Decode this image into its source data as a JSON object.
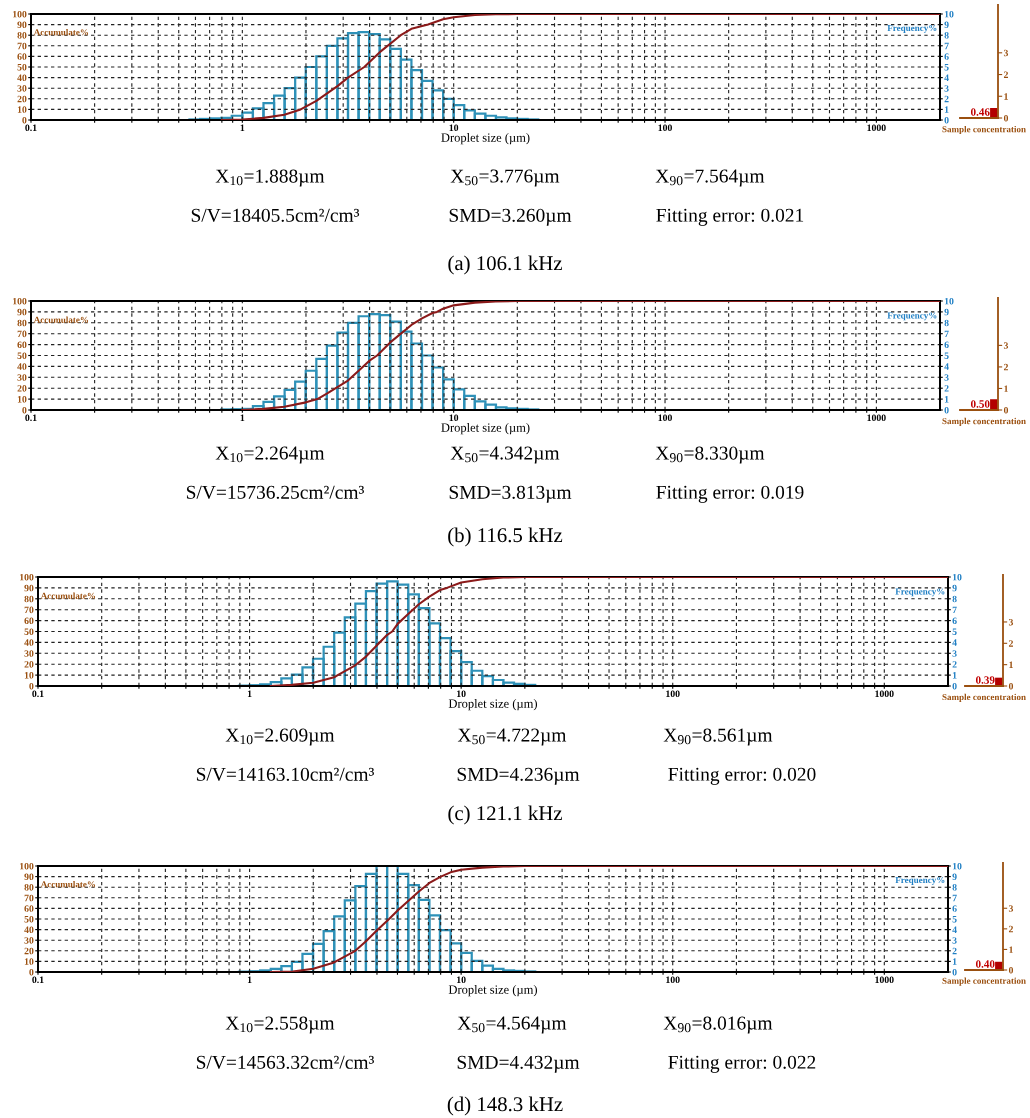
{
  "chart_data": [
    {
      "type": "histogram",
      "title": "(a) 106.1 kHz",
      "xlabel": "Droplet size (µm)",
      "ylabel": "Accumulate%",
      "y2label": "Frequency%",
      "log": "x",
      "xlim": [
        0.1,
        2000
      ],
      "xticks": [
        0.1,
        {
          "value": 0.2,
          "label": null
        },
        {
          "value": 0.3,
          "label": null
        },
        {
          "value": 0.4,
          "label": null
        },
        {
          "value": 0.5,
          "label": null
        },
        {
          "value": 0.6,
          "label": null
        },
        {
          "value": 0.7,
          "label": null
        },
        {
          "value": 0.8,
          "label": null
        },
        {
          "value": 0.9,
          "label": null
        },
        1,
        {
          "value": 2,
          "label": null
        },
        {
          "value": 3,
          "label": null
        },
        {
          "value": 4,
          "label": null
        },
        {
          "value": 5,
          "label": null
        },
        {
          "value": 6,
          "label": null
        },
        {
          "value": 7,
          "label": null
        },
        {
          "value": 8,
          "label": null
        },
        {
          "value": 9,
          "label": null
        },
        10,
        {
          "value": 20,
          "label": null
        },
        {
          "value": 30,
          "label": null
        },
        {
          "value": 40,
          "label": null
        },
        {
          "value": 50,
          "label": null
        },
        {
          "value": 60,
          "label": null
        },
        {
          "value": 70,
          "label": null
        },
        {
          "value": 80,
          "label": null
        },
        {
          "value": 90,
          "label": null
        },
        100,
        {
          "value": 200,
          "label": null
        },
        {
          "value": 300,
          "label": null
        },
        {
          "value": 400,
          "label": null
        },
        {
          "value": 500,
          "label": null
        },
        {
          "value": 600,
          "label": null
        },
        {
          "value": 700,
          "label": null
        },
        {
          "value": 800,
          "label": null
        },
        {
          "value": 900,
          "label": null
        },
        1000
      ],
      "ylim": [
        0,
        100
      ],
      "yticks": [
        0,
        10,
        20,
        30,
        40,
        50,
        60,
        70,
        80,
        90,
        100
      ],
      "y2lim": [
        0,
        10
      ],
      "y2ticks": [
        0,
        1,
        2,
        3,
        4,
        5,
        6,
        7,
        8,
        9,
        10
      ],
      "grid": true,
      "series": [
        {
          "type": "histogram",
          "axis": "y2",
          "color": "#2e91b8",
          "bins": [
            0.501,
            0.562,
            0.631,
            0.708,
            0.794,
            0.891,
            1,
            1.122,
            1.259,
            1.413,
            1.585,
            1.778,
            1.995,
            2.239,
            2.512,
            2.818,
            3.162,
            3.548,
            3.981,
            4.467,
            5.012,
            5.623,
            6.31,
            7.079,
            7.943,
            8.913,
            10,
            11.22,
            12.59,
            14.13,
            15.85,
            17.78,
            19.95,
            22.39,
            25.12
          ],
          "values": [
            null,
            0.05,
            0.1,
            0.15,
            0.2,
            0.4,
            0.7,
            1.1,
            1.6,
            2.3,
            3.0,
            4.0,
            5.0,
            6.0,
            7.0,
            7.7,
            8.2,
            8.3,
            8.1,
            7.6,
            6.7,
            5.7,
            4.7,
            3.7,
            2.8,
            2.0,
            1.4,
            0.9,
            0.6,
            0.4,
            0.25,
            0.15,
            0.1,
            0.05
          ]
        },
        {
          "type": "line",
          "color": "#8b1a1a",
          "x": [
            0.8,
            1.0,
            1.26,
            1.58,
            1.888,
            2.24,
            2.82,
            3.16,
            3.776,
            4.47,
            5.62,
            6.31,
            7.564,
            8.91,
            10,
            12.6,
            15.8,
            20,
            2000
          ],
          "values": [
            0,
            0.5,
            2,
            5,
            10,
            18,
            32,
            40,
            50,
            64,
            80,
            86,
            90,
            95,
            97,
            99,
            99.7,
            100,
            100
          ]
        }
      ],
      "annotations": [
        "X$_{10}$=1.888µm",
        "X$_{50}$=3.776µm",
        "X$_{90}$=7.564µm",
        "S/V=18405.5cm²/cm³",
        "SMD=3.260µm",
        "Fitting error: 0.021"
      ]
    },
    {
      "type": "bar",
      "categories": [
        null
      ],
      "values": [
        0.46
      ],
      "colors": [
        "#b30000"
      ],
      "value_labels": [
        "0.46"
      ],
      "data_labels": true,
      "ylim": [
        0,
        5.2
      ],
      "yticks": [
        0,
        1,
        2,
        3
      ],
      "xlabel": "Sample concentration"
    },
    {
      "type": "histogram",
      "title": "(b) 116.5 kHz",
      "xlabel": "Droplet size (µm)",
      "ylabel": "Accumulate%",
      "y2label": "Frequency%",
      "log": "x",
      "xlim": [
        0.1,
        2000
      ],
      "xticks": [
        0.1,
        {
          "value": 0.2,
          "label": null
        },
        {
          "value": 0.3,
          "label": null
        },
        {
          "value": 0.4,
          "label": null
        },
        {
          "value": 0.5,
          "label": null
        },
        {
          "value": 0.6,
          "label": null
        },
        {
          "value": 0.7,
          "label": null
        },
        {
          "value": 0.8,
          "label": null
        },
        {
          "value": 0.9,
          "label": null
        },
        1,
        {
          "value": 2,
          "label": null
        },
        {
          "value": 3,
          "label": null
        },
        {
          "value": 4,
          "label": null
        },
        {
          "value": 5,
          "label": null
        },
        {
          "value": 6,
          "label": null
        },
        {
          "value": 7,
          "label": null
        },
        {
          "value": 8,
          "label": null
        },
        {
          "value": 9,
          "label": null
        },
        10,
        {
          "value": 20,
          "label": null
        },
        {
          "value": 30,
          "label": null
        },
        {
          "value": 40,
          "label": null
        },
        {
          "value": 50,
          "label": null
        },
        {
          "value": 60,
          "label": null
        },
        {
          "value": 70,
          "label": null
        },
        {
          "value": 80,
          "label": null
        },
        {
          "value": 90,
          "label": null
        },
        100,
        {
          "value": 200,
          "label": null
        },
        {
          "value": 300,
          "label": null
        },
        {
          "value": 400,
          "label": null
        },
        {
          "value": 500,
          "label": null
        },
        {
          "value": 600,
          "label": null
        },
        {
          "value": 700,
          "label": null
        },
        {
          "value": 800,
          "label": null
        },
        {
          "value": 900,
          "label": null
        },
        1000
      ],
      "ylim": [
        0,
        100
      ],
      "yticks": [
        0,
        10,
        20,
        30,
        40,
        50,
        60,
        70,
        80,
        90,
        100
      ],
      "y2lim": [
        0,
        10
      ],
      "y2ticks": [
        0,
        1,
        2,
        3,
        4,
        5,
        6,
        7,
        8,
        9,
        10
      ],
      "grid": true,
      "series": [
        {
          "type": "histogram",
          "axis": "y2",
          "color": "#2e91b8",
          "bins": [
            0.631,
            0.708,
            0.794,
            0.891,
            1,
            1.122,
            1.259,
            1.413,
            1.585,
            1.778,
            1.995,
            2.239,
            2.512,
            2.818,
            3.162,
            3.548,
            3.981,
            4.467,
            5.012,
            5.623,
            6.31,
            7.079,
            7.943,
            8.913,
            10,
            11.22,
            12.59,
            14.13,
            15.85,
            17.78,
            19.95,
            22.39,
            25.12
          ],
          "values": [
            null,
            null,
            0.05,
            0.07,
            0.1,
            0.35,
            0.75,
            1.25,
            1.85,
            2.6,
            3.6,
            4.7,
            5.9,
            7.1,
            8.0,
            8.6,
            8.8,
            8.7,
            8.1,
            7.2,
            6.1,
            5.0,
            3.9,
            2.8,
            1.9,
            1.3,
            0.8,
            0.5,
            0.25,
            0.15,
            0.1,
            0.05
          ]
        },
        {
          "type": "line",
          "color": "#8b1a1a",
          "x": [
            1.0,
            1.26,
            1.58,
            2.0,
            2.264,
            2.51,
            3.16,
            3.55,
            3.98,
            4.342,
            5.01,
            6.31,
            7.08,
            7.94,
            8.33,
            8.91,
            10,
            12.6,
            15.8,
            20,
            2000
          ],
          "values": [
            0,
            1,
            3,
            7,
            10,
            15,
            27,
            36,
            45,
            50,
            62,
            78,
            84,
            89,
            90,
            93,
            96,
            98.5,
            99.5,
            100,
            100
          ]
        }
      ],
      "annotations": [
        "X$_{10}$=2.264µm",
        "X$_{50}$=4.342µm",
        "X$_{90}$=8.330µm",
        "S/V=15736.25cm²/cm³",
        "SMD=3.813µm",
        "Fitting error: 0.019"
      ]
    },
    {
      "type": "bar",
      "categories": [
        null
      ],
      "values": [
        0.5
      ],
      "colors": [
        "#b30000"
      ],
      "value_labels": [
        "0.50"
      ],
      "data_labels": true,
      "ylim": [
        0,
        5.2
      ],
      "yticks": [
        0,
        1,
        2,
        3
      ],
      "xlabel": "Sample concentration"
    },
    {
      "type": "histogram",
      "title": "(c) 121.1 kHz",
      "xlabel": "Droplet size (µm)",
      "ylabel": "Accumulate%",
      "y2label": "Frequency%",
      "log": "x",
      "xlim": [
        0.1,
        2000
      ],
      "xticks": [
        0.1,
        {
          "value": 0.2,
          "label": null
        },
        {
          "value": 0.3,
          "label": null
        },
        {
          "value": 0.4,
          "label": null
        },
        {
          "value": 0.5,
          "label": null
        },
        {
          "value": 0.6,
          "label": null
        },
        {
          "value": 0.7,
          "label": null
        },
        {
          "value": 0.8,
          "label": null
        },
        {
          "value": 0.9,
          "label": null
        },
        1,
        {
          "value": 2,
          "label": null
        },
        {
          "value": 3,
          "label": null
        },
        {
          "value": 4,
          "label": null
        },
        {
          "value": 5,
          "label": null
        },
        {
          "value": 6,
          "label": null
        },
        {
          "value": 7,
          "label": null
        },
        {
          "value": 8,
          "label": null
        },
        {
          "value": 9,
          "label": null
        },
        10,
        {
          "value": 20,
          "label": null
        },
        {
          "value": 30,
          "label": null
        },
        {
          "value": 40,
          "label": null
        },
        {
          "value": 50,
          "label": null
        },
        {
          "value": 60,
          "label": null
        },
        {
          "value": 70,
          "label": null
        },
        {
          "value": 80,
          "label": null
        },
        {
          "value": 90,
          "label": null
        },
        100,
        {
          "value": 200,
          "label": null
        },
        {
          "value": 300,
          "label": null
        },
        {
          "value": 400,
          "label": null
        },
        {
          "value": 500,
          "label": null
        },
        {
          "value": 600,
          "label": null
        },
        {
          "value": 700,
          "label": null
        },
        {
          "value": 800,
          "label": null
        },
        {
          "value": 900,
          "label": null
        },
        1000
      ],
      "ylim": [
        0,
        100
      ],
      "yticks": [
        0,
        10,
        20,
        30,
        40,
        50,
        60,
        70,
        80,
        90,
        100
      ],
      "y2lim": [
        0,
        10
      ],
      "y2ticks": [
        0,
        1,
        2,
        3,
        4,
        5,
        6,
        7,
        8,
        9,
        10
      ],
      "grid": true,
      "series": [
        {
          "type": "histogram",
          "axis": "y2",
          "color": "#2e91b8",
          "bins": [
            0.794,
            0.891,
            1,
            1.122,
            1.259,
            1.413,
            1.585,
            1.778,
            1.995,
            2.239,
            2.512,
            2.818,
            3.162,
            3.548,
            3.981,
            4.467,
            5.012,
            5.623,
            6.31,
            7.079,
            7.943,
            8.913,
            10,
            11.22,
            12.59,
            14.13,
            15.85,
            17.78,
            19.95,
            22.39
          ],
          "values": [
            null,
            0.03,
            0.07,
            0.15,
            0.35,
            0.7,
            1.05,
            1.7,
            2.5,
            3.6,
            4.9,
            6.3,
            7.55,
            8.7,
            9.4,
            9.6,
            9.3,
            8.4,
            7.15,
            5.75,
            4.4,
            3.2,
            2.2,
            1.4,
            0.9,
            0.55,
            0.3,
            0.2,
            0.1
          ]
        },
        {
          "type": "line",
          "color": "#8b1a1a",
          "x": [
            1.26,
            1.58,
            2.0,
            2.51,
            2.609,
            3.16,
            3.55,
            3.98,
            4.47,
            4.722,
            5.01,
            5.62,
            6.31,
            7.08,
            7.94,
            8.561,
            10,
            12.6,
            15.8,
            20,
            2000
          ],
          "values": [
            0,
            1,
            3,
            8,
            10,
            19,
            27,
            37,
            47,
            50,
            57,
            66,
            75,
            82,
            88,
            90,
            95,
            98,
            99.5,
            100,
            100
          ]
        }
      ],
      "annotations": [
        "X$_{10}$=2.609µm",
        "X$_{50}$=4.722µm",
        "X$_{90}$=8.561µm",
        "S/V=14163.10cm²/cm³",
        "SMD=4.236µm",
        "Fitting error: 0.020"
      ]
    },
    {
      "type": "bar",
      "categories": [
        null
      ],
      "values": [
        0.39
      ],
      "colors": [
        "#b30000"
      ],
      "value_labels": [
        "0.39"
      ],
      "data_labels": true,
      "ylim": [
        0,
        5.2
      ],
      "yticks": [
        0,
        1,
        2,
        3
      ],
      "xlabel": "Sample concentration"
    },
    {
      "type": "histogram",
      "title": "(d) 148.3 kHz",
      "xlabel": "Droplet size (µm)",
      "ylabel": "Accumulate%",
      "y2label": "Frequency%",
      "log": "x",
      "xlim": [
        0.1,
        2000
      ],
      "xticks": [
        0.1,
        {
          "value": 0.2,
          "label": null
        },
        {
          "value": 0.3,
          "label": null
        },
        {
          "value": 0.4,
          "label": null
        },
        {
          "value": 0.5,
          "label": null
        },
        {
          "value": 0.6,
          "label": null
        },
        {
          "value": 0.7,
          "label": null
        },
        {
          "value": 0.8,
          "label": null
        },
        {
          "value": 0.9,
          "label": null
        },
        1,
        {
          "value": 2,
          "label": null
        },
        {
          "value": 3,
          "label": null
        },
        {
          "value": 4,
          "label": null
        },
        {
          "value": 5,
          "label": null
        },
        {
          "value": 6,
          "label": null
        },
        {
          "value": 7,
          "label": null
        },
        {
          "value": 8,
          "label": null
        },
        {
          "value": 9,
          "label": null
        },
        10,
        {
          "value": 20,
          "label": null
        },
        {
          "value": 30,
          "label": null
        },
        {
          "value": 40,
          "label": null
        },
        {
          "value": 50,
          "label": null
        },
        {
          "value": 60,
          "label": null
        },
        {
          "value": 70,
          "label": null
        },
        {
          "value": 80,
          "label": null
        },
        {
          "value": 90,
          "label": null
        },
        100,
        {
          "value": 200,
          "label": null
        },
        {
          "value": 300,
          "label": null
        },
        {
          "value": 400,
          "label": null
        },
        {
          "value": 500,
          "label": null
        },
        {
          "value": 600,
          "label": null
        },
        {
          "value": 700,
          "label": null
        },
        {
          "value": 800,
          "label": null
        },
        {
          "value": 900,
          "label": null
        },
        1000
      ],
      "ylim": [
        0,
        100
      ],
      "yticks": [
        0,
        10,
        20,
        30,
        40,
        50,
        60,
        70,
        80,
        90,
        100
      ],
      "y2lim": [
        0,
        10
      ],
      "y2ticks": [
        0,
        1,
        2,
        3,
        4,
        5,
        6,
        7,
        8,
        9,
        10
      ],
      "grid": true,
      "series": [
        {
          "type": "histogram",
          "axis": "y2",
          "color": "#2e91b8",
          "bins": [
            0.891,
            1,
            1.122,
            1.259,
            1.413,
            1.585,
            1.778,
            1.995,
            2.239,
            2.512,
            2.818,
            3.162,
            3.548,
            3.981,
            4.467,
            5.012,
            5.623,
            6.31,
            7.079,
            7.943,
            8.913,
            10,
            11.22,
            12.59,
            14.13,
            15.85,
            17.78,
            19.95,
            22.39
          ],
          "values": [
            0.03,
            0.07,
            0.15,
            0.3,
            0.55,
            0.95,
            1.7,
            2.65,
            3.85,
            5.25,
            6.75,
            8.1,
            9.25,
            10.0,
            10.0,
            9.25,
            8.2,
            6.8,
            5.35,
            3.95,
            2.7,
            1.8,
            1.05,
            0.6,
            0.3,
            0.15,
            0.1,
            0.05
          ]
        },
        {
          "type": "line",
          "color": "#8b1a1a",
          "x": [
            1.26,
            1.6,
            2.0,
            2.51,
            2.558,
            3.16,
            3.55,
            3.98,
            4.564,
            5.01,
            5.62,
            6.31,
            7.08,
            8.016,
            8.91,
            10,
            12.6,
            15.8,
            20,
            2000
          ],
          "values": [
            0,
            0.5,
            3,
            9,
            10,
            20,
            29,
            39,
            50,
            58,
            67,
            76,
            84,
            90,
            94,
            96.5,
            98.5,
            99.5,
            100,
            100
          ]
        }
      ],
      "annotations": [
        "X$_{10}$=2.558µm",
        "X$_{50}$=4.564µm",
        "X$_{90}$=8.016µm",
        "S/V=14563.32cm²/cm³",
        "SMD=4.432µm",
        "Fitting error: 0.022"
      ]
    },
    {
      "type": "bar",
      "categories": [
        null
      ],
      "values": [
        0.4
      ],
      "colors": [
        "#b30000"
      ],
      "value_labels": [
        "0.40"
      ],
      "data_labels": true,
      "ylim": [
        0,
        5.2
      ],
      "yticks": [
        0,
        1,
        2,
        3
      ],
      "xlabel": "Sample concentration"
    }
  ]
}
